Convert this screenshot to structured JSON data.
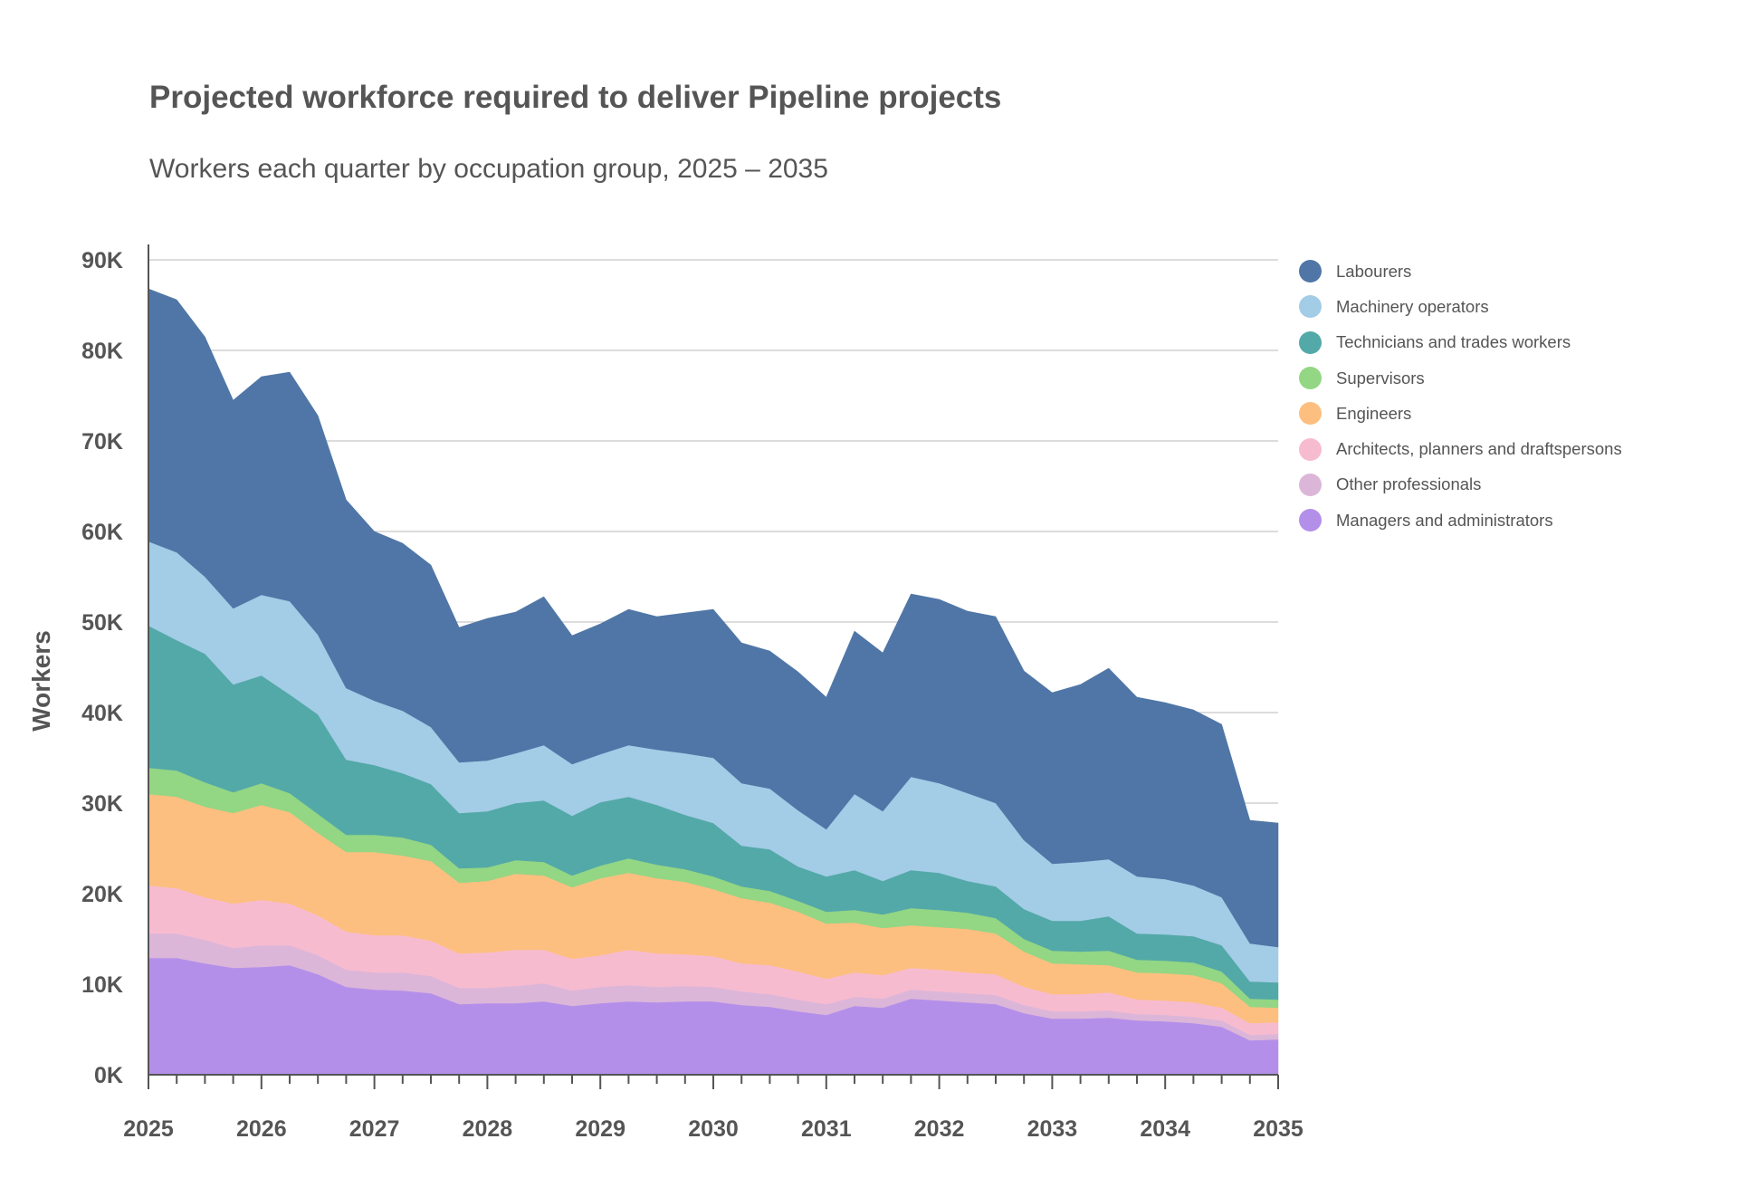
{
  "title": "Projected workforce required to deliver Pipeline projects",
  "subtitle": "Workers each quarter by occupation group, 2025 – 2035",
  "chart_data": {
    "type": "area",
    "stacked": true,
    "title": "Projected workforce required to deliver Pipeline projects",
    "subtitle": "Workers each quarter by occupation group, 2025 – 2035",
    "xlabel": "",
    "ylabel": "Workers",
    "xlim": [
      2025,
      2035
    ],
    "ylim": [
      0,
      90000
    ],
    "x_ticks": [
      "2025",
      "2026",
      "2027",
      "2028",
      "2029",
      "2030",
      "2031",
      "2032",
      "2033",
      "2034",
      "2035"
    ],
    "y_ticks": [
      "0K",
      "10K",
      "20K",
      "30K",
      "40K",
      "50K",
      "60K",
      "70K",
      "80K",
      "90K"
    ],
    "grid": "horizontal",
    "legend_position": "right",
    "x": [
      2025,
      2025.25,
      2025.5,
      2025.75,
      2026,
      2026.25,
      2026.5,
      2026.75,
      2027,
      2027.25,
      2027.5,
      2027.75,
      2028,
      2028.25,
      2028.5,
      2028.75,
      2029,
      2029.25,
      2029.5,
      2029.75,
      2030,
      2030.25,
      2030.5,
      2030.75,
      2031,
      2031.25,
      2031.5,
      2031.75,
      2032,
      2032.25,
      2032.5,
      2032.75,
      2033,
      2033.25,
      2033.5,
      2033.75,
      2034,
      2034.25,
      2034.5,
      2034.75,
      2035
    ],
    "series": [
      {
        "name": "Managers and administrators",
        "color": "#b48fea",
        "values": [
          12900,
          12900,
          12300,
          11800,
          11900,
          12100,
          11100,
          9700,
          9400,
          9300,
          9000,
          7800,
          7900,
          7900,
          8100,
          7600,
          7900,
          8100,
          8000,
          8100,
          8100,
          7700,
          7500,
          7000,
          6600,
          7600,
          7400,
          8400,
          8200,
          8000,
          7800,
          6800,
          6200,
          6200,
          6300,
          6000,
          5900,
          5700,
          5300,
          3800,
          3900
        ]
      },
      {
        "name": "Other professionals",
        "color": "#dcb6d8",
        "values": [
          2700,
          2700,
          2600,
          2200,
          2400,
          2200,
          2100,
          1900,
          1900,
          2000,
          1900,
          1800,
          1700,
          1900,
          2000,
          1700,
          1800,
          1800,
          1700,
          1700,
          1600,
          1500,
          1400,
          1300,
          1200,
          1000,
          1000,
          1000,
          1000,
          1000,
          1000,
          900,
          800,
          800,
          800,
          700,
          700,
          700,
          700,
          600,
          600
        ]
      },
      {
        "name": "Architects, planners and draftspersons",
        "color": "#f7bbd0",
        "values": [
          5300,
          5000,
          4700,
          4900,
          5000,
          4600,
          4400,
          4200,
          4100,
          4100,
          3900,
          3800,
          3900,
          4000,
          3700,
          3500,
          3500,
          3900,
          3700,
          3500,
          3400,
          3100,
          3200,
          3100,
          2800,
          2700,
          2600,
          2400,
          2400,
          2300,
          2300,
          2000,
          1900,
          1900,
          2000,
          1600,
          1600,
          1600,
          1400,
          1300,
          1300
        ]
      },
      {
        "name": "Engineers",
        "color": "#fdbf7f",
        "values": [
          10100,
          10100,
          10000,
          10000,
          10500,
          10100,
          9100,
          8800,
          9200,
          8800,
          8800,
          7800,
          7900,
          8400,
          8200,
          7900,
          8500,
          8500,
          8300,
          8000,
          7400,
          7200,
          6900,
          6600,
          6100,
          5500,
          5200,
          4700,
          4700,
          4800,
          4500,
          3900,
          3400,
          3300,
          3000,
          3000,
          3000,
          3000,
          2700,
          1800,
          1600
        ]
      },
      {
        "name": "Supervisors",
        "color": "#93d684",
        "values": [
          2900,
          2900,
          2700,
          2300,
          2400,
          2100,
          2100,
          1900,
          1900,
          2000,
          1800,
          1600,
          1500,
          1500,
          1500,
          1300,
          1400,
          1600,
          1500,
          1400,
          1400,
          1300,
          1300,
          1200,
          1300,
          1400,
          1500,
          1900,
          1900,
          1800,
          1700,
          1400,
          1400,
          1400,
          1600,
          1400,
          1400,
          1400,
          1300,
          900,
          900
        ]
      },
      {
        "name": "Technicians and trades workers",
        "color": "#53a9a8",
        "values": [
          15700,
          14400,
          14200,
          11900,
          11900,
          10900,
          11000,
          8300,
          7700,
          7100,
          6700,
          6100,
          6200,
          6300,
          6800,
          6600,
          7000,
          6800,
          6600,
          6000,
          5900,
          4500,
          4600,
          3800,
          3900,
          4400,
          3700,
          4200,
          4100,
          3500,
          3500,
          3300,
          3300,
          3400,
          3800,
          2900,
          2900,
          2900,
          2900,
          1900,
          1900
        ]
      },
      {
        "name": "Machinery operators",
        "color": "#a3cce6",
        "values": [
          9300,
          9700,
          8500,
          8400,
          8900,
          10300,
          8800,
          7900,
          7100,
          6900,
          6300,
          5600,
          5600,
          5500,
          6100,
          5700,
          5300,
          5700,
          6100,
          6800,
          7200,
          6900,
          6700,
          6200,
          5200,
          8400,
          7700,
          10300,
          9900,
          9700,
          9200,
          7600,
          6300,
          6500,
          6300,
          6300,
          6100,
          5600,
          5300,
          4200,
          3900
        ]
      },
      {
        "name": "Labourers",
        "color": "#4f76a6",
        "values": [
          27900,
          27900,
          26500,
          23000,
          24100,
          25300,
          24200,
          20800,
          18700,
          18500,
          17900,
          14900,
          15700,
          15600,
          16400,
          14200,
          14400,
          15000,
          14700,
          15500,
          16400,
          15500,
          15200,
          15300,
          14600,
          18000,
          17500,
          20200,
          20300,
          20100,
          20600,
          18700,
          18900,
          19600,
          21100,
          19800,
          19500,
          19400,
          19100,
          13600,
          13700
        ]
      }
    ]
  }
}
